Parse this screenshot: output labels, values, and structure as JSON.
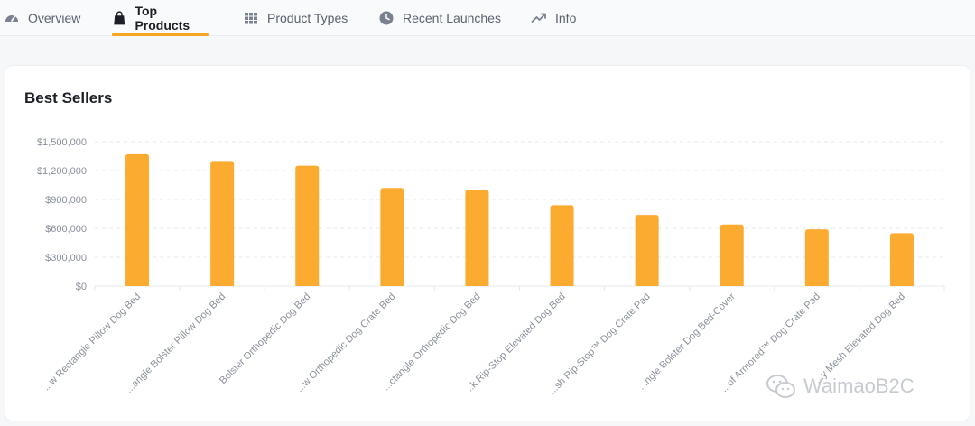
{
  "tabs": [
    {
      "label": "Overview",
      "icon": "gauge-icon",
      "active": false
    },
    {
      "label": "Top Products",
      "icon": "shopping-bag-icon",
      "active": true
    },
    {
      "label": "Product Types",
      "icon": "grid-icon",
      "active": false
    },
    {
      "label": "Recent Launches",
      "icon": "clock-icon",
      "active": false
    },
    {
      "label": "Info",
      "icon": "trend-up-icon",
      "active": false
    }
  ],
  "card": {
    "title": "Best Sellers"
  },
  "colors": {
    "accent": "#f5a623",
    "bar": "#fbab2f",
    "grid": "#e6e8ec",
    "axis_text": "#8a909c"
  },
  "chart_data": {
    "type": "bar",
    "title": "Best Sellers",
    "xlabel": "",
    "ylabel": "",
    "ylim": [
      0,
      1500000
    ],
    "yticks": [
      0,
      300000,
      600000,
      900000,
      1200000,
      1500000
    ],
    "ytick_labels": [
      "$0",
      "$300,000",
      "$600,000",
      "$900,000",
      "$1,200,000",
      "$1,500,000"
    ],
    "grid": true,
    "categories": [
      "...w Rectangle Pillow Dog Bed",
      "...angle Bolster Pillow Dog Bed",
      "Bolster Orthopedic Dog Bed",
      "...w Orthopedic Dog Crate Bed",
      "...ctangle Orthopedic Dog Bed",
      "...k Rip-Stop Elevated Dog Bed",
      "...sh Rip-Stop™ Dog Crate Pad",
      "...ngle Bolster Dog Bed-Cover",
      "...of Armored™ Dog Crate Pad",
      "...y Mesh Elevated Dog Bed"
    ],
    "values": [
      1370000,
      1300000,
      1250000,
      1020000,
      1000000,
      840000,
      740000,
      640000,
      590000,
      550000
    ]
  },
  "watermark": {
    "text": "WaimaoB2C",
    "icon": "wechat-icon"
  }
}
